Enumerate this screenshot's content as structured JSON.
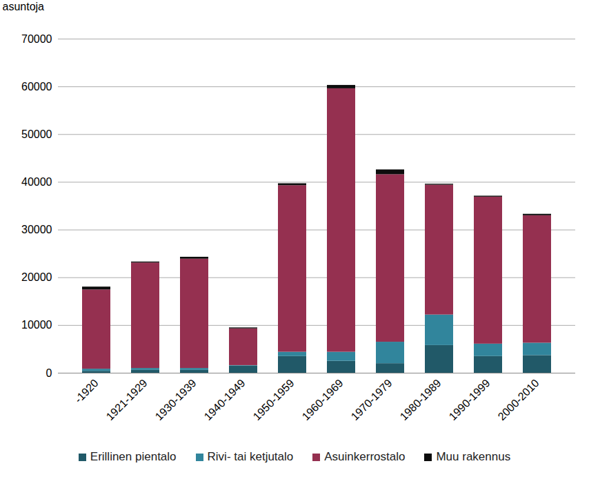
{
  "chart_data": {
    "type": "bar",
    "stacked": true,
    "grid": true,
    "legend": "bottom",
    "ylabel": "asuntoja",
    "categories": [
      "-1920",
      "1921-1929",
      "1930-1939",
      "1940-1949",
      "1950-1959",
      "1960-1969",
      "1970-1979",
      "1980-1989",
      "1990-1999",
      "2000-2010"
    ],
    "ylim": [
      0,
      70000
    ],
    "yticks": [
      0,
      10000,
      20000,
      30000,
      40000,
      50000,
      60000,
      70000
    ],
    "series": [
      {
        "name": "Erillinen pientalo",
        "color": "#215968",
        "values": [
          400,
          600,
          600,
          1500,
          3500,
          2500,
          2000,
          5800,
          3500,
          3700
        ]
      },
      {
        "name": "Rivi- tai ketjutalo",
        "color": "#31859c",
        "values": [
          450,
          400,
          400,
          100,
          900,
          1900,
          4500,
          6400,
          2600,
          2600
        ]
      },
      {
        "name": "Asuinkerrostalo",
        "color": "#953050",
        "values": [
          16600,
          22100,
          22900,
          7700,
          34900,
          55200,
          35100,
          27200,
          30800,
          26700
        ]
      },
      {
        "name": "Muu rakennus",
        "color": "#0d0d0d",
        "values": [
          600,
          200,
          400,
          200,
          400,
          700,
          1000,
          200,
          200,
          300
        ]
      }
    ]
  }
}
